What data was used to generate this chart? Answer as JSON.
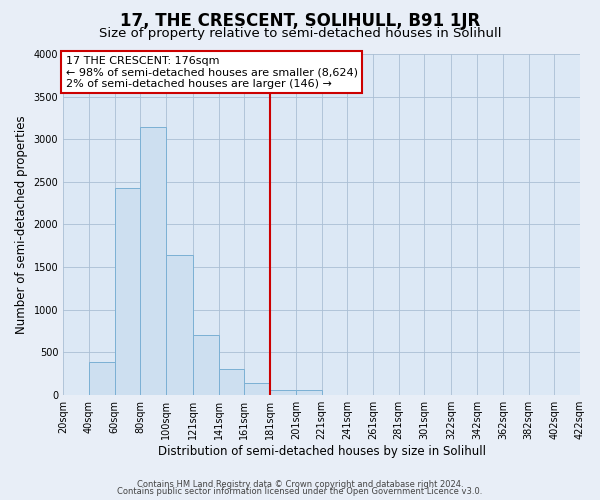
{
  "title": "17, THE CRESCENT, SOLIHULL, B91 1JR",
  "subtitle": "Size of property relative to semi-detached houses in Solihull",
  "xlabel": "Distribution of semi-detached houses by size in Solihull",
  "ylabel": "Number of semi-detached properties",
  "bar_edges": [
    20,
    40,
    60,
    80,
    100,
    121,
    141,
    161,
    181,
    201,
    221,
    241,
    261,
    281,
    301,
    322,
    342,
    362,
    382,
    402,
    422
  ],
  "bar_heights": [
    0,
    380,
    2430,
    3140,
    1640,
    700,
    300,
    140,
    50,
    60,
    0,
    0,
    0,
    0,
    0,
    0,
    0,
    0,
    0,
    0
  ],
  "bar_color": "#cddff0",
  "bar_edgecolor": "#7bb0d4",
  "vline_x": 181,
  "vline_color": "#cc0000",
  "annotation_title": "17 THE CRESCENT: 176sqm",
  "annotation_line1": "← 98% of semi-detached houses are smaller (8,624)",
  "annotation_line2": "2% of semi-detached houses are larger (146) →",
  "annotation_box_color": "#ffffff",
  "annotation_box_edgecolor": "#cc0000",
  "ylim": [
    0,
    4000
  ],
  "yticks": [
    0,
    500,
    1000,
    1500,
    2000,
    2500,
    3000,
    3500,
    4000
  ],
  "tick_labels": [
    "20sqm",
    "40sqm",
    "60sqm",
    "80sqm",
    "100sqm",
    "121sqm",
    "141sqm",
    "161sqm",
    "181sqm",
    "201sqm",
    "221sqm",
    "241sqm",
    "261sqm",
    "281sqm",
    "301sqm",
    "322sqm",
    "342sqm",
    "362sqm",
    "382sqm",
    "402sqm",
    "422sqm"
  ],
  "footer1": "Contains HM Land Registry data © Crown copyright and database right 2024.",
  "footer2": "Contains public sector information licensed under the Open Government Licence v3.0.",
  "background_color": "#e8eef7",
  "plot_bg_color": "#dce8f5",
  "title_fontsize": 12,
  "subtitle_fontsize": 9.5,
  "axis_label_fontsize": 8.5,
  "tick_fontsize": 7,
  "footer_fontsize": 6,
  "annotation_fontsize": 8
}
